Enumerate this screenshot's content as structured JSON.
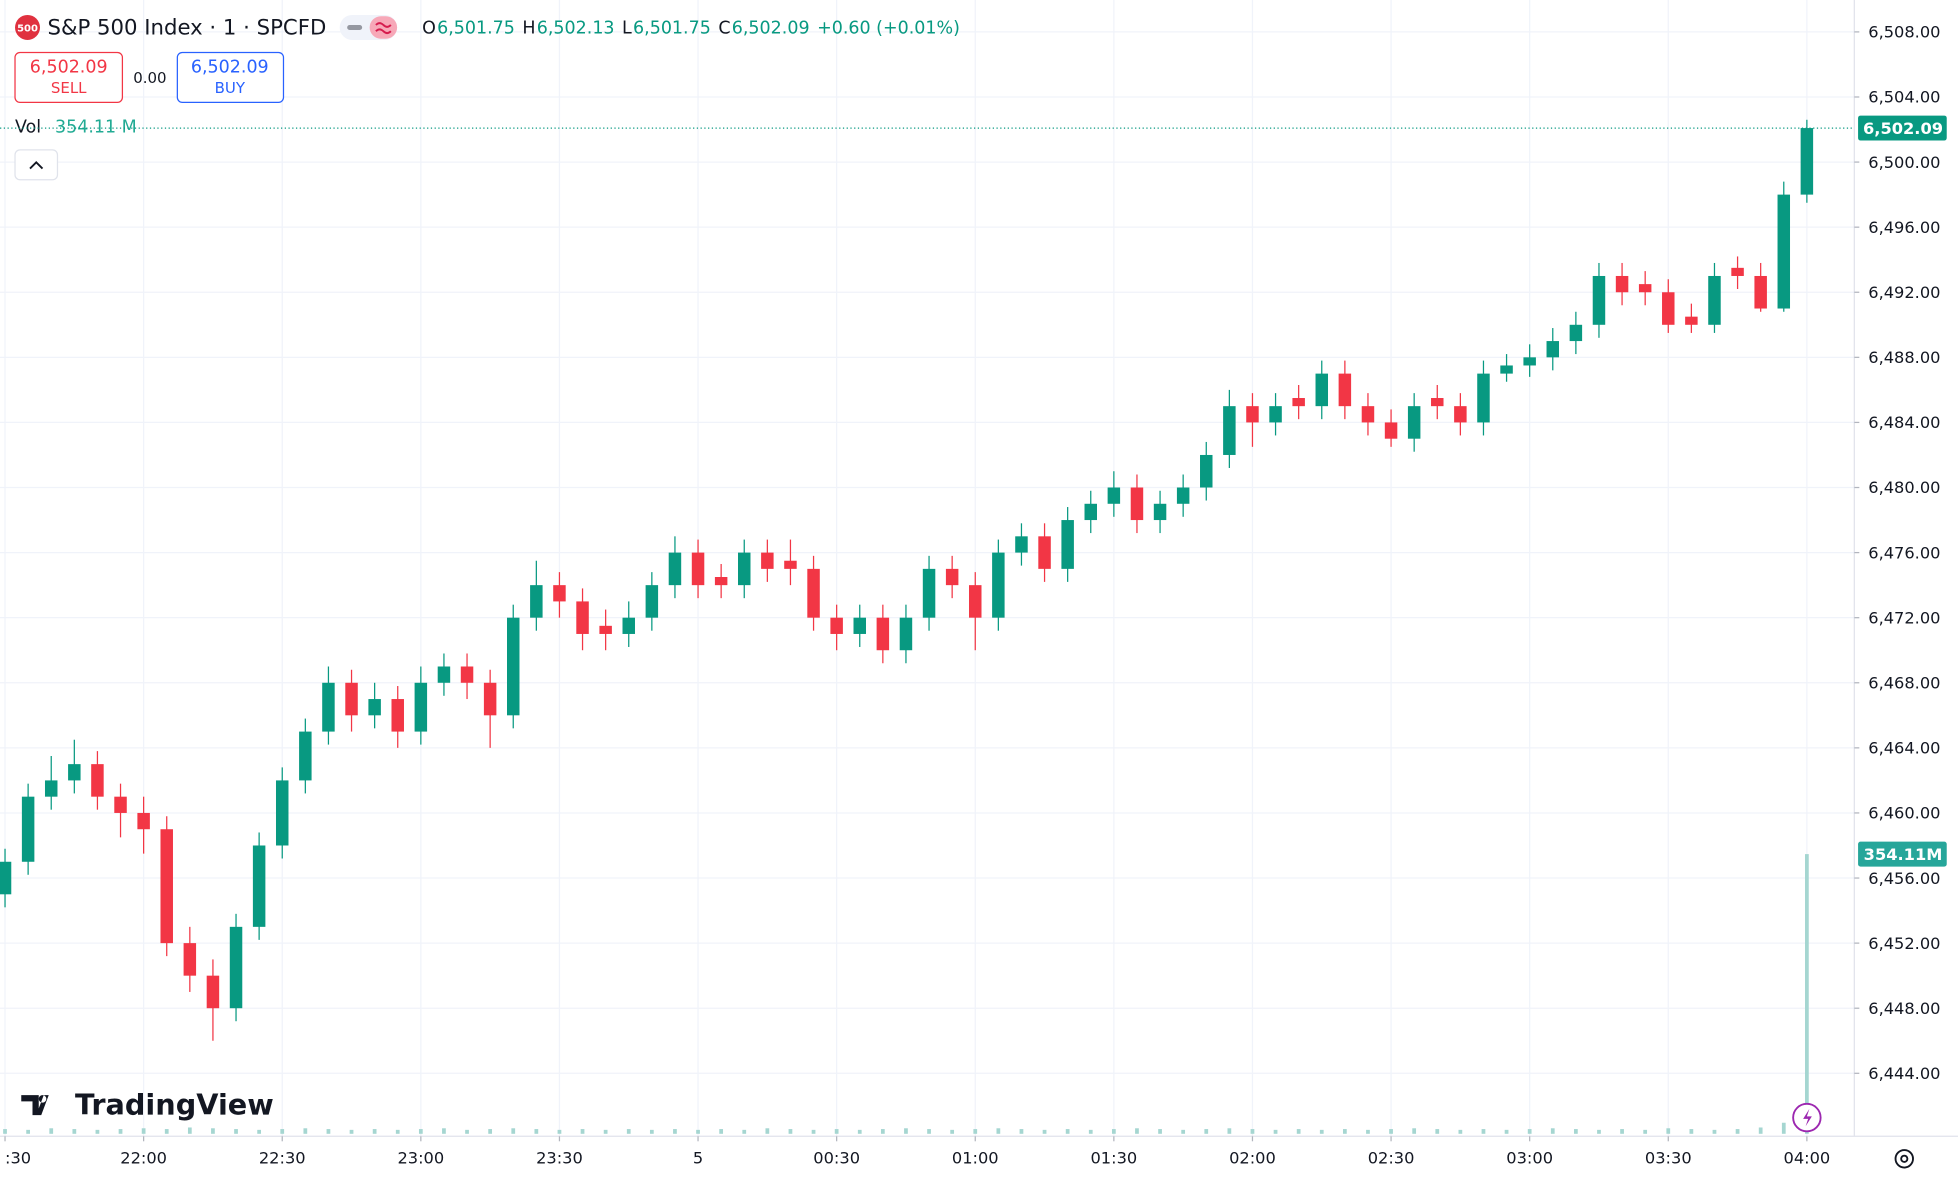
{
  "header": {
    "symbol_icon": "500",
    "title": "S&P 500 Index · 1 · SPCFD",
    "ohlc": [
      {
        "key": "O",
        "value": "6,501.75"
      },
      {
        "key": "H",
        "value": "6,502.13"
      },
      {
        "key": "L",
        "value": "6,501.75"
      },
      {
        "key": "C",
        "value": "6,502.09"
      }
    ],
    "change": "+0.60 (+0.01%)",
    "sell_price": "6,502.09",
    "sell_label": "SELL",
    "spread": "0.00",
    "buy_price": "6,502.09",
    "buy_label": "BUY",
    "volume_title": "Vol",
    "volume_value": "354.11 M",
    "branding": "TradingView"
  },
  "chart_data": {
    "type": "candlestick",
    "up_color": "#089981",
    "down_color": "#f23645",
    "grid": true,
    "x": [
      "21:30",
      "21:35",
      "21:40",
      "21:45",
      "21:50",
      "21:55",
      "22:00",
      "22:05",
      "22:10",
      "22:15",
      "22:20",
      "22:25",
      "22:30",
      "22:35",
      "22:40",
      "22:45",
      "22:50",
      "22:55",
      "23:00",
      "23:05",
      "23:10",
      "23:15",
      "23:20",
      "23:25",
      "23:30",
      "23:35",
      "23:40",
      "23:45",
      "23:50",
      "23:55",
      "00:00",
      "00:05",
      "00:10",
      "00:15",
      "00:20",
      "00:25",
      "00:30",
      "00:35",
      "00:40",
      "00:45",
      "00:50",
      "00:55",
      "01:00",
      "01:05",
      "01:10",
      "01:15",
      "01:20",
      "01:25",
      "01:30",
      "01:35",
      "01:40",
      "01:45",
      "01:50",
      "01:55",
      "02:00",
      "02:05",
      "02:10",
      "02:15",
      "02:20",
      "02:25",
      "02:30",
      "02:35",
      "02:40",
      "02:45",
      "02:50",
      "02:55",
      "03:00",
      "03:05",
      "03:10",
      "03:15",
      "03:20",
      "03:25",
      "03:30",
      "03:35",
      "03:40",
      "03:45",
      "03:50",
      "03:55",
      "04:00"
    ],
    "open": [
      6455,
      6457,
      6461,
      6462,
      6463,
      6461,
      6460,
      6459,
      6452,
      6450,
      6448,
      6453,
      6458,
      6462,
      6465,
      6468,
      6466,
      6467,
      6465,
      6468,
      6469,
      6468,
      6466,
      6472,
      6474,
      6473,
      6471.5,
      6471,
      6472,
      6474,
      6476,
      6474.5,
      6474,
      6476,
      6475.5,
      6475,
      6472,
      6471,
      6472,
      6470,
      6472,
      6475,
      6474,
      6472,
      6476,
      6477,
      6475,
      6478,
      6479,
      6480,
      6478,
      6479,
      6480,
      6482,
      6485,
      6484,
      6485.5,
      6485,
      6487,
      6485,
      6484,
      6483,
      6485.5,
      6485,
      6484,
      6487,
      6487.5,
      6488,
      6489,
      6490,
      6493,
      6492.5,
      6492,
      6490.5,
      6490,
      6493.5,
      6493,
      6491,
      6498
    ],
    "high": [
      6457.8,
      6461.8,
      6463.5,
      6464.5,
      6463.8,
      6461.8,
      6461,
      6459.8,
      6453,
      6451,
      6453.8,
      6458.8,
      6462.8,
      6465.8,
      6469,
      6468.8,
      6468,
      6467.8,
      6469,
      6469.8,
      6469.8,
      6468.8,
      6472.8,
      6475.5,
      6474.8,
      6473.8,
      6472.5,
      6473,
      6474.8,
      6477,
      6476.8,
      6475.3,
      6476.8,
      6476.8,
      6476.8,
      6475.8,
      6472.8,
      6472.8,
      6472.8,
      6472.8,
      6475.8,
      6475.8,
      6474.8,
      6476.8,
      6477.8,
      6477.8,
      6478.8,
      6479.8,
      6481,
      6480.8,
      6479.8,
      6480.8,
      6482.8,
      6486,
      6485.8,
      6485.8,
      6486.3,
      6487.8,
      6487.8,
      6485.8,
      6484.8,
      6485.8,
      6486.3,
      6485.8,
      6487.8,
      6488.2,
      6488.8,
      6489.8,
      6490.8,
      6493.8,
      6493.8,
      6493.3,
      6492.8,
      6491.3,
      6493.8,
      6494.2,
      6493.8,
      6498.8,
      6502.6
    ],
    "low": [
      6454.2,
      6456.2,
      6460.2,
      6461.2,
      6460.2,
      6458.5,
      6457.5,
      6451.2,
      6449,
      6446,
      6447.2,
      6452.2,
      6457.2,
      6461.2,
      6464.2,
      6465,
      6465.2,
      6464,
      6464.2,
      6467.2,
      6467,
      6464,
      6465.2,
      6471.2,
      6472,
      6470,
      6470,
      6470.2,
      6471.2,
      6473.2,
      6473.2,
      6473.2,
      6473.2,
      6474.2,
      6474,
      6471.2,
      6470,
      6470.2,
      6469.2,
      6469.2,
      6471.2,
      6473.2,
      6470,
      6471.2,
      6475.2,
      6474.2,
      6474.2,
      6477.2,
      6478.2,
      6477.2,
      6477.2,
      6478.2,
      6479.2,
      6481.2,
      6482.5,
      6483.2,
      6484.2,
      6484.2,
      6484.2,
      6483.2,
      6482.5,
      6482.2,
      6484.2,
      6483.2,
      6483.2,
      6486.5,
      6486.8,
      6487.2,
      6488.2,
      6489.2,
      6491.2,
      6491.2,
      6489.5,
      6489.5,
      6489.5,
      6492.2,
      6490.8,
      6490.8,
      6497.5
    ],
    "close": [
      6457,
      6461,
      6462,
      6463,
      6461,
      6460,
      6459,
      6452,
      6450,
      6448,
      6453,
      6458,
      6462,
      6465,
      6468,
      6466,
      6467,
      6465,
      6468,
      6469,
      6468,
      6466,
      6472,
      6474,
      6473,
      6471,
      6471,
      6472,
      6474,
      6476,
      6474,
      6474,
      6476,
      6475,
      6475,
      6472,
      6471,
      6472,
      6470,
      6472,
      6475,
      6474,
      6472,
      6476,
      6477,
      6475,
      6478,
      6479,
      6480,
      6478,
      6479,
      6480,
      6482,
      6485,
      6484,
      6485,
      6485,
      6487,
      6485,
      6484,
      6483,
      6485,
      6485,
      6484,
      6487,
      6487.5,
      6488,
      6489,
      6490,
      6493,
      6492,
      6492,
      6490,
      6490,
      6493,
      6493,
      6491,
      6498,
      6502.09
    ],
    "volume": [
      6,
      5,
      7,
      6,
      5,
      6,
      7,
      6,
      8,
      7,
      6,
      5,
      6,
      7,
      6,
      5,
      6,
      5,
      6,
      7,
      5,
      6,
      7,
      6,
      5,
      6,
      5,
      6,
      5,
      6,
      5,
      6,
      5,
      7,
      6,
      5,
      6,
      5,
      6,
      7,
      6,
      5,
      6,
      7,
      6,
      5,
      6,
      5,
      6,
      7,
      6,
      5,
      6,
      7,
      6,
      5,
      6,
      5,
      6,
      5,
      6,
      7,
      6,
      5,
      6,
      5,
      6,
      7,
      6,
      5,
      6,
      5,
      7,
      6,
      5,
      6,
      8,
      14,
      354.11
    ],
    "volume_color": "#a5d6d1",
    "last_price": {
      "value": 6502.09,
      "label": "6,502.09"
    },
    "last_volume": {
      "value": 354.11,
      "label": "354.11M"
    },
    "ylim": [
      6442.2,
      6509.5
    ],
    "yticks": [
      {
        "value": 6444,
        "label": "6,444.00"
      },
      {
        "value": 6448,
        "label": "6,448.00"
      },
      {
        "value": 6452,
        "label": "6,452.00"
      },
      {
        "value": 6456,
        "label": "6,456.00"
      },
      {
        "value": 6460,
        "label": "6,460.00"
      },
      {
        "value": 6464,
        "label": "6,464.00"
      },
      {
        "value": 6468,
        "label": "6,468.00"
      },
      {
        "value": 6472,
        "label": "6,472.00"
      },
      {
        "value": 6476,
        "label": "6,476.00"
      },
      {
        "value": 6480,
        "label": "6,480.00"
      },
      {
        "value": 6484,
        "label": "6,484.00"
      },
      {
        "value": 6488,
        "label": "6,488.00"
      },
      {
        "value": 6492,
        "label": "6,492.00"
      },
      {
        "value": 6496,
        "label": "6,496.00"
      },
      {
        "value": 6500,
        "label": "6,500.00"
      },
      {
        "value": 6504,
        "label": "6,504.00"
      },
      {
        "value": 6508,
        "label": "6,508.00"
      }
    ],
    "xticks": [
      {
        "value": "21:30",
        "label": ":30"
      },
      "22:00",
      "22:30",
      "23:00",
      "23:30",
      {
        "value": "00:00",
        "label": "5"
      },
      "00:30",
      "01:00",
      "01:30",
      "02:00",
      "02:30",
      "03:00",
      "03:30",
      "04:00"
    ]
  }
}
